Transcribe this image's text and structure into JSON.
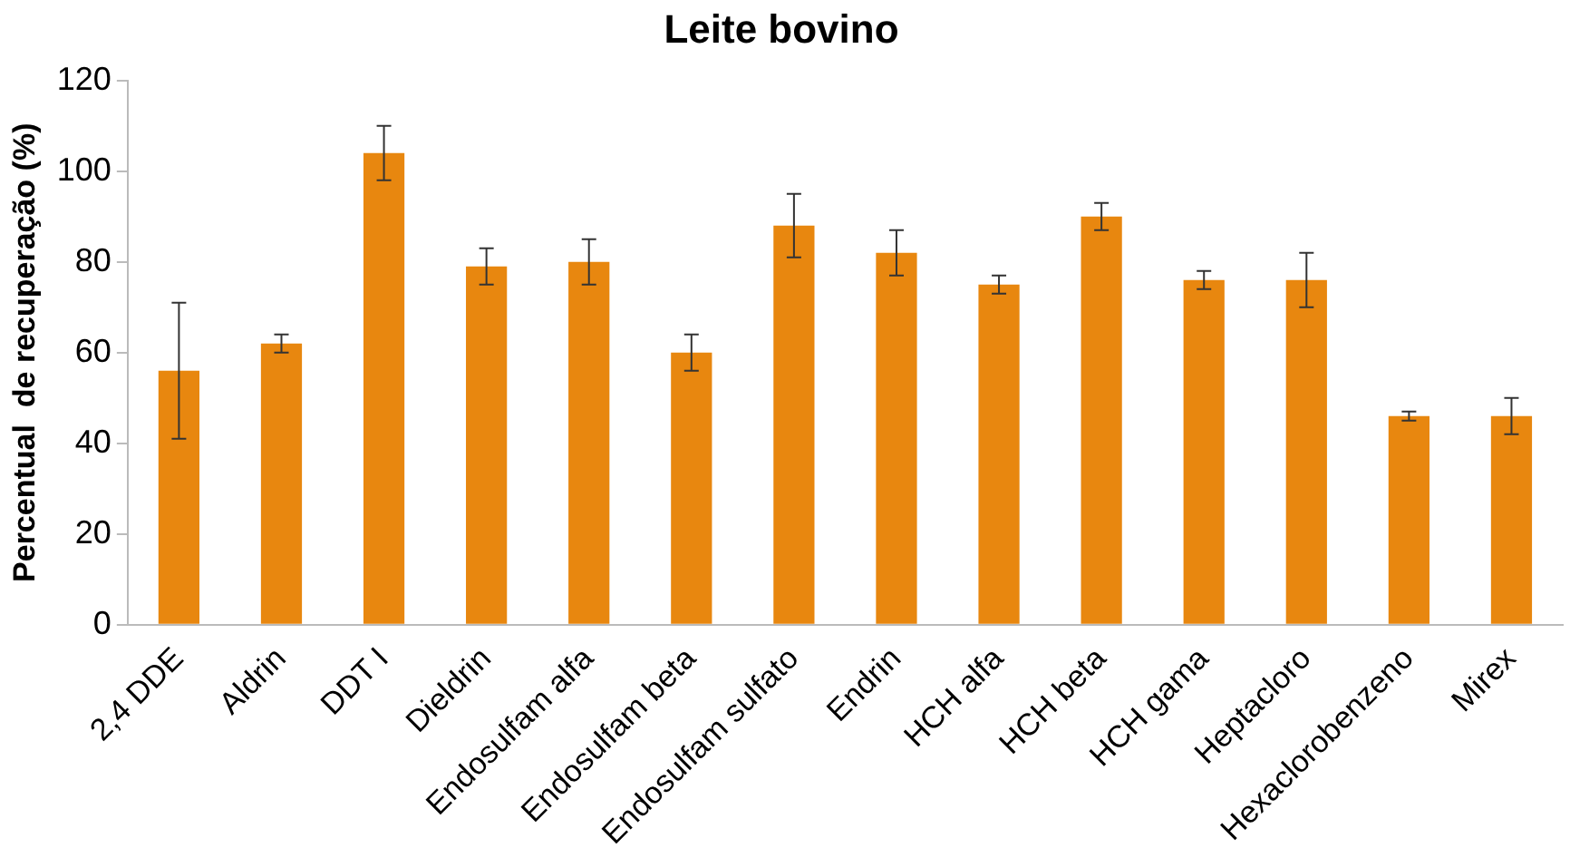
{
  "chart_data": {
    "type": "bar",
    "title": "Leite bovino",
    "ylabel": "Percentual  de recuperação (%)",
    "categories": [
      "2,4 DDE",
      "Aldrin",
      "DDT I",
      "Dieldrin",
      "Endosulfam alfa",
      "Endosulfam beta",
      "Endosulfam sulfato",
      "Endrin",
      "HCH alfa",
      "HCH beta",
      "HCH gama",
      "Heptacloro",
      "Hexaclorobenzeno",
      "Mirex"
    ],
    "values": [
      56,
      62,
      104,
      79,
      80,
      60,
      88,
      82,
      75,
      90,
      76,
      76,
      46,
      46
    ],
    "errors": [
      15,
      2,
      6,
      4,
      5,
      4,
      7,
      5,
      2,
      3,
      2,
      6,
      1,
      4
    ],
    "color": "#e8870f",
    "ylim": [
      0,
      120
    ],
    "yticks": [
      0,
      20,
      40,
      60,
      80,
      100,
      120
    ],
    "grid": false,
    "legend": false
  }
}
